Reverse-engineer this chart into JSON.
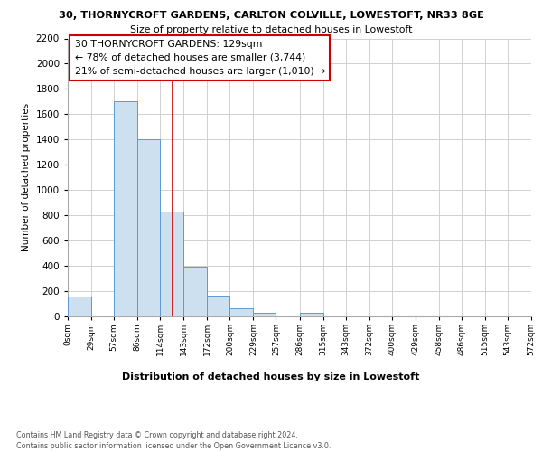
{
  "title_line1": "30, THORNYCROFT GARDENS, CARLTON COLVILLE, LOWESTOFT, NR33 8GE",
  "title_line2": "Size of property relative to detached houses in Lowestoft",
  "xlabel": "Distribution of detached houses by size in Lowestoft",
  "ylabel": "Number of detached properties",
  "bar_edges": [
    0,
    29,
    57,
    86,
    114,
    143,
    172,
    200,
    229,
    257,
    286,
    315,
    343,
    372,
    400,
    429,
    458,
    486,
    515,
    543,
    572
  ],
  "bar_heights": [
    155,
    0,
    1700,
    1400,
    830,
    390,
    165,
    65,
    30,
    0,
    30,
    0,
    0,
    0,
    0,
    0,
    0,
    0,
    0,
    0
  ],
  "bar_color": "#cce0f0",
  "bar_edge_color": "#5b9bd5",
  "property_line_x": 129,
  "property_line_color": "#cc0000",
  "annotation_box_text": "30 THORNYCROFT GARDENS: 129sqm\n← 78% of detached houses are smaller (3,744)\n21% of semi-detached houses are larger (1,010) →",
  "annotation_box_color": "#ffffff",
  "annotation_box_edgecolor": "#cc0000",
  "ylim": [
    0,
    2200
  ],
  "yticks": [
    0,
    200,
    400,
    600,
    800,
    1000,
    1200,
    1400,
    1600,
    1800,
    2000,
    2200
  ],
  "xtick_labels": [
    "0sqm",
    "29sqm",
    "57sqm",
    "86sqm",
    "114sqm",
    "143sqm",
    "172sqm",
    "200sqm",
    "229sqm",
    "257sqm",
    "286sqm",
    "315sqm",
    "343sqm",
    "372sqm",
    "400sqm",
    "429sqm",
    "458sqm",
    "486sqm",
    "515sqm",
    "543sqm",
    "572sqm"
  ],
  "footer_text": "Contains HM Land Registry data © Crown copyright and database right 2024.\nContains public sector information licensed under the Open Government Licence v3.0.",
  "background_color": "#ffffff",
  "grid_color": "#d0d0d0"
}
